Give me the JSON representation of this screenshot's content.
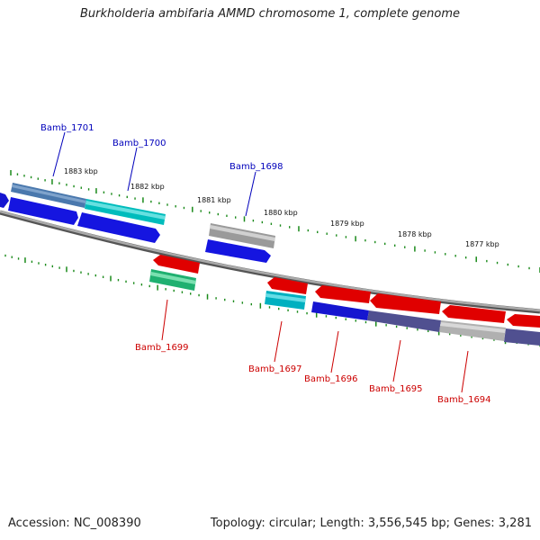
{
  "title": "Burkholderia ambifaria AMMD chromosome 1, complete genome",
  "footer": {
    "accession": "Accession: NC_008390",
    "summary": "Topology: circular; Length: 3,556,545 bp; Genes: 3,281"
  },
  "colors": {
    "forward_label": "#0000bb",
    "reverse_label": "#cc0000",
    "tick": "#1a8a1a",
    "backbone": "#888888"
  },
  "scale_labels": [
    "1883 kbp",
    "1882 kbp",
    "1881 kbp",
    "1880 kbp",
    "1879 kbp",
    "1878 kbp",
    "1877 kbp"
  ],
  "gene_labels": {
    "forward": [
      "Bamb_1701",
      "Bamb_1700",
      "Bamb_1698"
    ],
    "reverse": [
      "Bamb_1699",
      "Bamb_1697",
      "Bamb_1696",
      "Bamb_1695",
      "Bamb_1694"
    ]
  }
}
